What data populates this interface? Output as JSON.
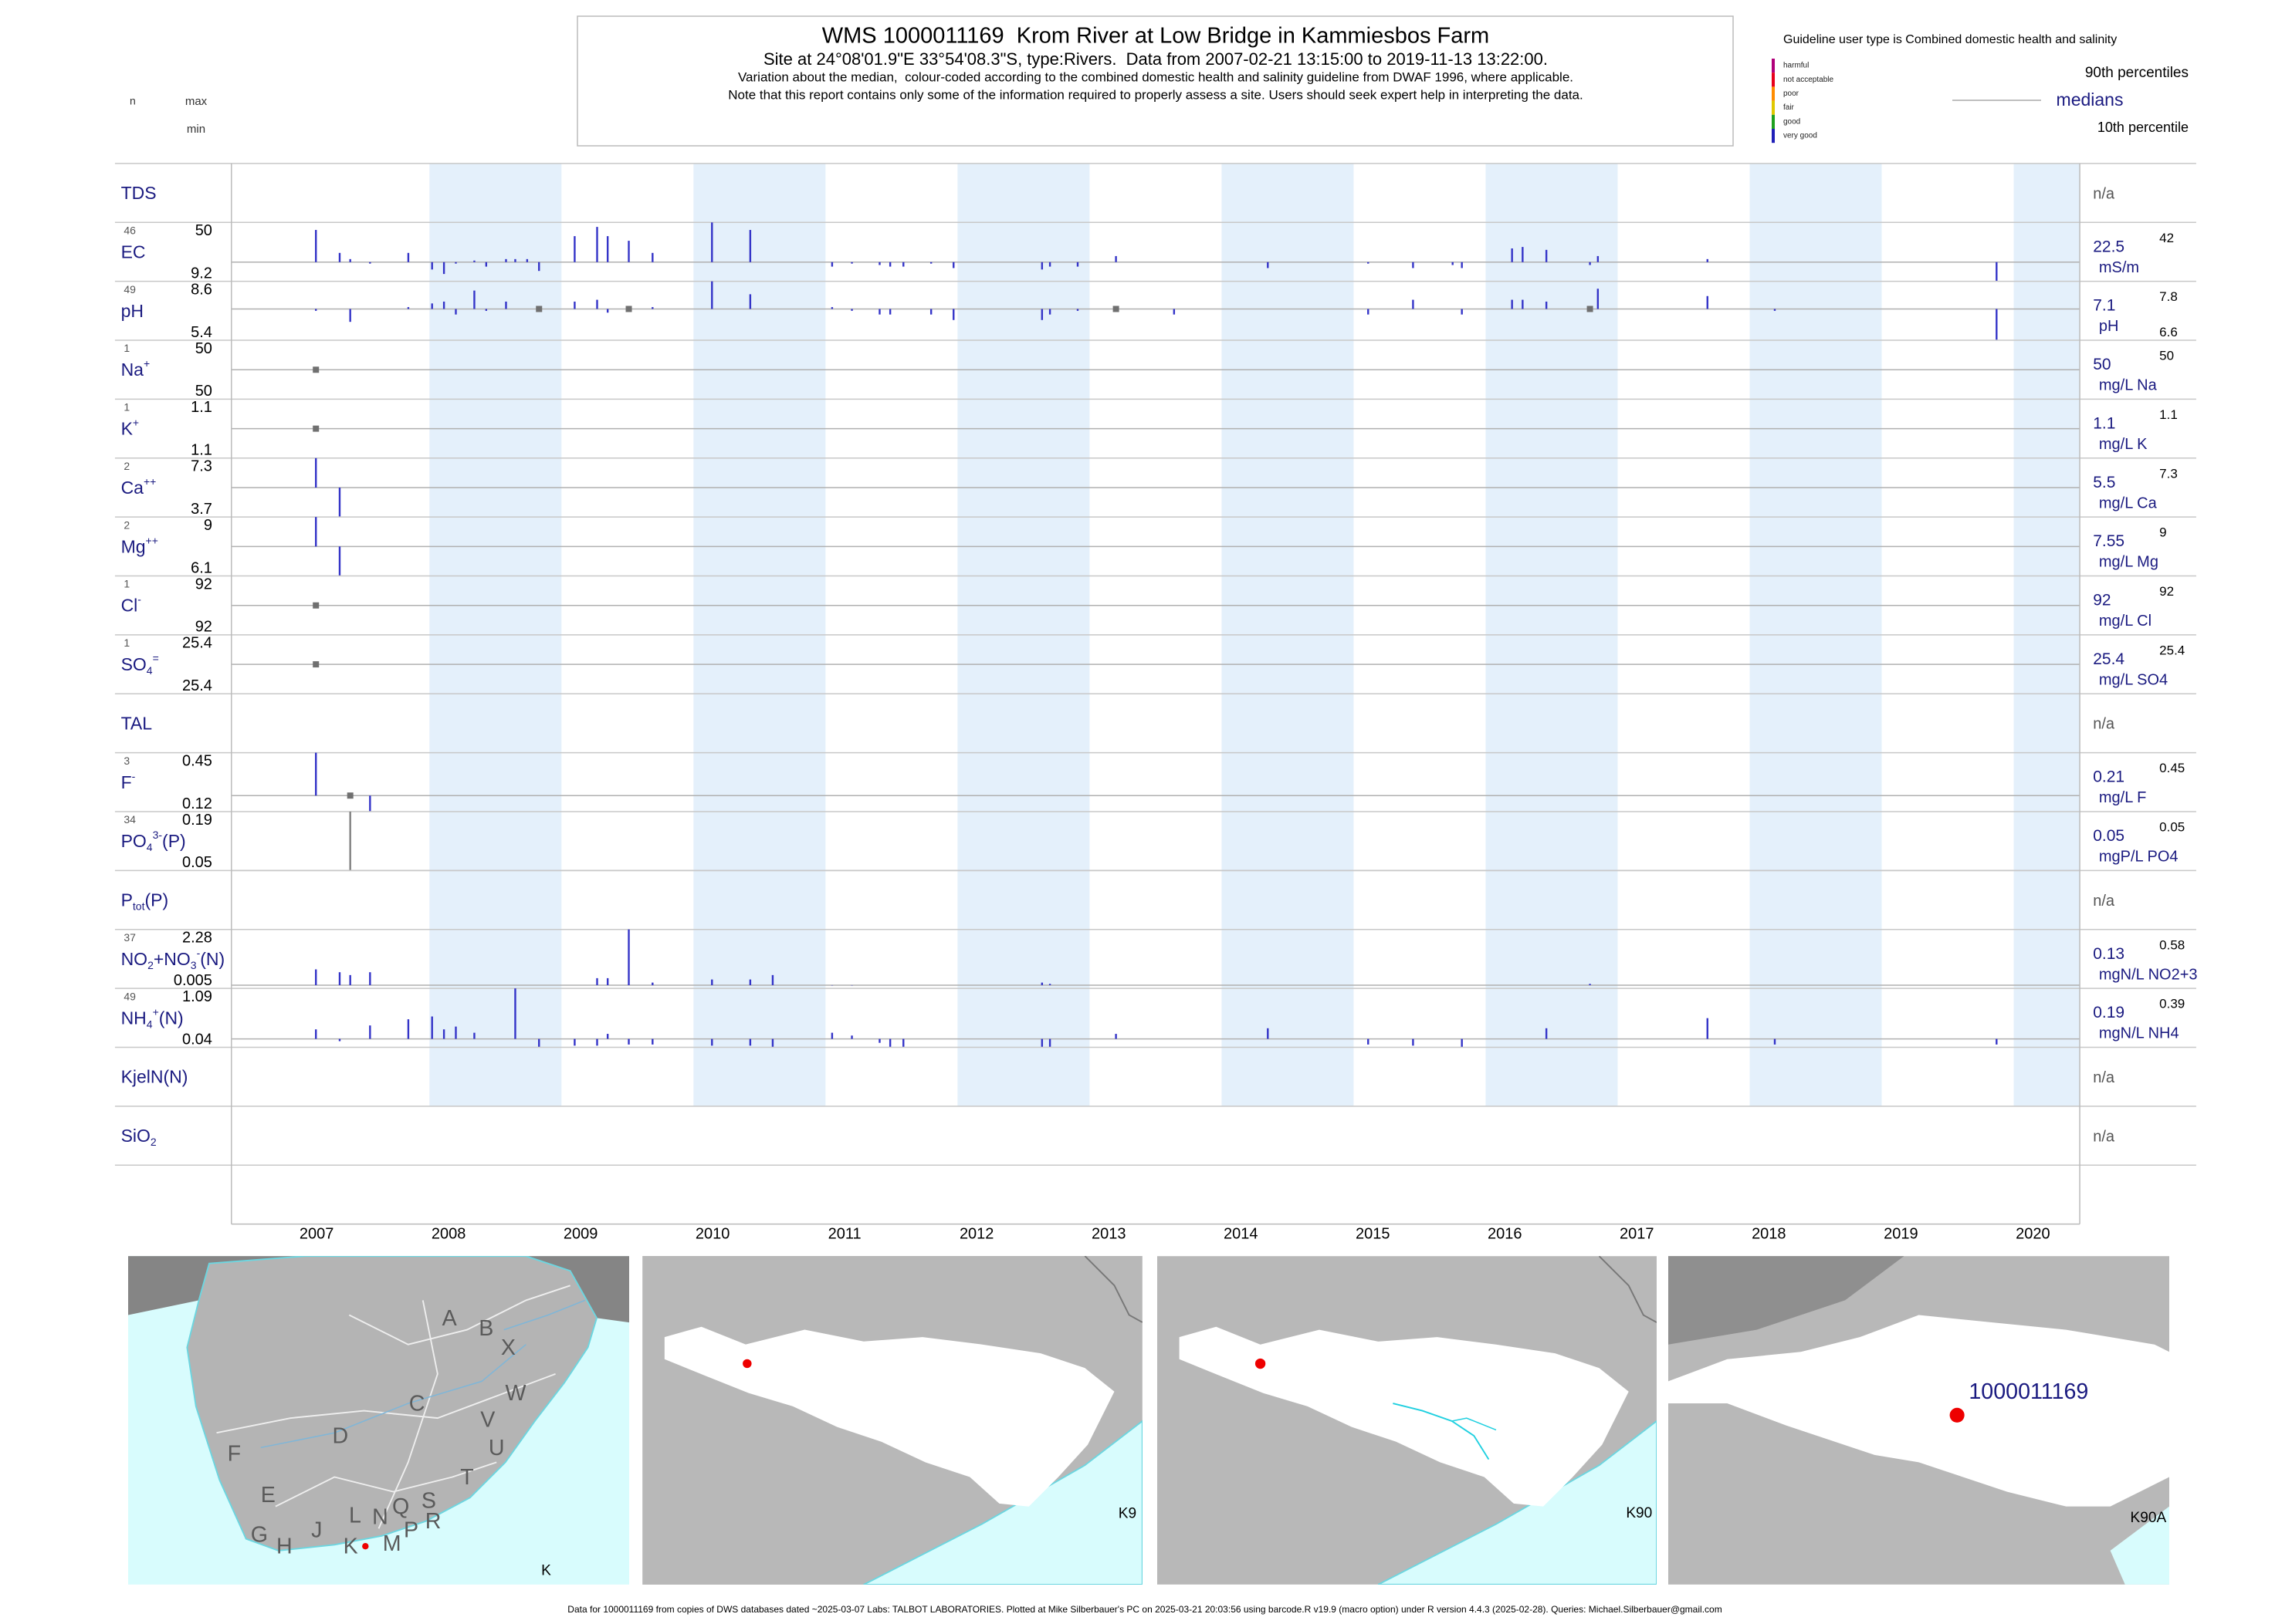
{
  "header": {
    "title": "WMS 1000011169  Krom River at Low Bridge in Kammiesbos Farm",
    "site_line": "Site at 24°08'01.9\"E 33°54'08.3\"S, type:Rivers.  Data from 2007-02-21 13:15:00 to 2019-11-13 13:22:00.",
    "note_1": "Variation about the median,  colour-coded according to the combined domestic health and salinity guideline from DWAF 1996, where applicable.",
    "note_2": "Note that this report contains only some of the information required to properly assess a site. Users should seek expert help in interpreting the data."
  },
  "column_labels": {
    "n": "n",
    "max": "max",
    "min": "min"
  },
  "legend": {
    "guideline": "Guideline user type is Combined domestic health and salinity",
    "classes": [
      {
        "label": "harmful",
        "color": "#b0007a"
      },
      {
        "label": "not acceptable",
        "color": "#e8001c"
      },
      {
        "label": "poor",
        "color": "#ff8c00"
      },
      {
        "label": "fair",
        "color": "#e0c800"
      },
      {
        "label": "good",
        "color": "#1ea01e"
      },
      {
        "label": "very good",
        "color": "#2020b8"
      }
    ],
    "upper": "90th percentiles",
    "middle": "medians",
    "lower": "10th percentile"
  },
  "chart_data": {
    "type": "strip",
    "xlim": [
      2006.5,
      2020.5
    ],
    "xticks": [
      2007,
      2008,
      2009,
      2010,
      2011,
      2012,
      2013,
      2014,
      2015,
      2016,
      2017,
      2018,
      2019,
      2020
    ],
    "alternate_shading": true,
    "rows": [
      {
        "name": [
          {
            "text": "TDS",
            "style": "base"
          }
        ],
        "status": "n/a"
      },
      {
        "name": [
          {
            "text": "EC",
            "style": "base"
          }
        ],
        "n": 46,
        "max": 50,
        "min": 9.2,
        "median": 22.5,
        "unit": "mS/m",
        "p90": 42,
        "color": "#3434c8",
        "x": [
          2007.14,
          2007.32,
          2007.4,
          2007.55,
          2007.84,
          2008.02,
          2008.11,
          2008.2,
          2008.34,
          2008.43,
          2008.58,
          2008.65,
          2008.74,
          2008.83,
          2009.1,
          2009.27,
          2009.35,
          2009.51,
          2009.69,
          2010.14,
          2010.43,
          2011.05,
          2011.2,
          2011.41,
          2011.49,
          2011.59,
          2011.8,
          2011.97,
          2012.64,
          2012.7,
          2012.91,
          2013.2,
          2014.35,
          2015.11,
          2015.45,
          2015.75,
          2015.82,
          2016.2,
          2016.28,
          2016.46,
          2016.79,
          2016.85,
          2017.68,
          2019.87
        ],
        "values": [
          44.8,
          28.9,
          24.6,
          21.5,
          28.9,
          17.4,
          14.3,
          21.5,
          23.6,
          19.4,
          24.6,
          24.6,
          24.6,
          16.4,
          40.5,
          46.9,
          40.5,
          37.3,
          28.9,
          50,
          44.8,
          19.4,
          21.5,
          20.5,
          19.4,
          19.4,
          21.5,
          18.4,
          17.4,
          19.4,
          19.4,
          26.7,
          18.4,
          21.5,
          18.4,
          20.5,
          18.4,
          32,
          33,
          31,
          20.5,
          26.7,
          24.6,
          9.2
        ]
      },
      {
        "name": [
          {
            "text": "pH",
            "style": "base"
          }
        ],
        "n": 49,
        "max": 8.6,
        "min": 5.4,
        "median": 7.1,
        "unit": "pH",
        "p90": 7.8,
        "p10": 6.6,
        "color": "#3434c8",
        "x": [
          2007.14,
          2007.4,
          2007.84,
          2008.02,
          2008.11,
          2008.2,
          2008.34,
          2008.43,
          2008.58,
          2008.83,
          2009.1,
          2009.27,
          2009.35,
          2009.51,
          2009.69,
          2010.14,
          2010.43,
          2011.05,
          2011.2,
          2011.41,
          2011.49,
          2011.8,
          2011.97,
          2012.64,
          2012.7,
          2012.91,
          2013.2,
          2013.64,
          2015.11,
          2015.45,
          2015.82,
          2016.2,
          2016.28,
          2016.46,
          2016.79,
          2016.85,
          2017.68,
          2018.19,
          2019.87
        ],
        "values": [
          7.0,
          6.4,
          7.2,
          7.4,
          7.5,
          6.8,
          8.1,
          7.0,
          7.5,
          7.1,
          7.5,
          7.6,
          6.9,
          7.1,
          7.2,
          8.6,
          7.9,
          7.2,
          7.0,
          6.8,
          6.8,
          6.8,
          6.5,
          6.5,
          6.8,
          7.0,
          7.1,
          6.8,
          6.8,
          7.6,
          6.8,
          7.6,
          7.6,
          7.5,
          7.1,
          8.2,
          7.8,
          7.0,
          5.4
        ]
      },
      {
        "name": [
          {
            "text": "Na",
            "style": "base"
          },
          {
            "text": "+",
            "style": "sup"
          }
        ],
        "n": 1,
        "max": 50,
        "min": 50,
        "median": 50,
        "unit": "mg/L Na",
        "p90": 50,
        "color": "#707070",
        "x": [
          2007.14
        ],
        "values": [
          50
        ]
      },
      {
        "name": [
          {
            "text": "K",
            "style": "base"
          },
          {
            "text": "+",
            "style": "sup"
          }
        ],
        "n": 1,
        "max": 1.1,
        "min": 1.1,
        "median": 1.1,
        "unit": "mg/L K",
        "p90": 1.1,
        "color": "#707070",
        "x": [
          2007.14
        ],
        "values": [
          1.1
        ]
      },
      {
        "name": [
          {
            "text": "Ca",
            "style": "base"
          },
          {
            "text": "++",
            "style": "sup"
          }
        ],
        "n": 2,
        "max": 7.3,
        "min": 3.7,
        "median": 5.5,
        "unit": "mg/L Ca",
        "p90": 7.3,
        "color": "#3434c8",
        "x": [
          2007.14,
          2007.32
        ],
        "values": [
          7.3,
          3.7
        ]
      },
      {
        "name": [
          {
            "text": "Mg",
            "style": "base"
          },
          {
            "text": "++",
            "style": "sup"
          }
        ],
        "n": 2,
        "max": 9,
        "min": 6.1,
        "median": 7.55,
        "unit": "mg/L Mg",
        "p90": 9,
        "color": "#3434c8",
        "x": [
          2007.14,
          2007.32
        ],
        "values": [
          9,
          6.1
        ]
      },
      {
        "name": [
          {
            "text": "Cl",
            "style": "base"
          },
          {
            "text": "-",
            "style": "sup"
          }
        ],
        "n": 1,
        "max": 92,
        "min": 92,
        "median": 92,
        "unit": "mg/L Cl",
        "p90": 92,
        "color": "#707070",
        "x": [
          2007.14
        ],
        "values": [
          92
        ]
      },
      {
        "name": [
          {
            "text": "SO",
            "style": "base"
          },
          {
            "text": "4",
            "style": "sub"
          },
          {
            "text": "=",
            "style": "sup"
          }
        ],
        "n": 1,
        "max": 25.4,
        "min": 25.4,
        "median": 25.4,
        "unit": "mg/L SO4",
        "p90": 25.4,
        "color": "#707070",
        "x": [
          2007.14
        ],
        "values": [
          25.4
        ]
      },
      {
        "name": [
          {
            "text": "TAL",
            "style": "base"
          }
        ],
        "status": "n/a"
      },
      {
        "name": [
          {
            "text": "F",
            "style": "base"
          },
          {
            "text": "-",
            "style": "sup"
          }
        ],
        "n": 3,
        "max": 0.45,
        "min": 0.12,
        "median": 0.21,
        "unit": "mg/L F",
        "p90": 0.45,
        "color": "#3434c8",
        "x": [
          2007.14,
          2007.4,
          2007.55
        ],
        "values": [
          0.45,
          0.21,
          0.12
        ]
      },
      {
        "name": [
          {
            "text": "PO",
            "style": "base"
          },
          {
            "text": "4",
            "style": "sub"
          },
          {
            "text": "3-",
            "style": "sup"
          },
          {
            "text": "(P)",
            "style": "base"
          }
        ],
        "n": 34,
        "max": 0.19,
        "min": 0.05,
        "median": 0.05,
        "unit": "mgP/L PO4",
        "p90": 0.05,
        "color": "#808080",
        "x": [
          2007.4
        ],
        "values": [
          0.19
        ]
      },
      {
        "name": [
          {
            "text": "P",
            "style": "base"
          },
          {
            "text": "tot",
            "style": "sub"
          },
          {
            "text": "(P)",
            "style": "base"
          }
        ],
        "status": "n/a"
      },
      {
        "name": [
          {
            "text": "NO",
            "style": "base"
          },
          {
            "text": "2",
            "style": "sub"
          },
          {
            "text": "+NO",
            "style": "base"
          },
          {
            "text": "3",
            "style": "sub"
          },
          {
            "text": "-",
            "style": "sup"
          },
          {
            "text": "(N)",
            "style": "base"
          }
        ],
        "n": 37,
        "max": 2.28,
        "min": 0.005,
        "median": 0.13,
        "unit": "mgN/L NO2+3",
        "p90": 0.58,
        "color": "#3434c8",
        "x": [
          2007.14,
          2007.32,
          2007.4,
          2007.55,
          2009.27,
          2009.35,
          2009.51,
          2009.69,
          2010.14,
          2010.43,
          2010.6,
          2011.05,
          2011.2,
          2012.64,
          2012.7,
          2016.79
        ],
        "values": [
          0.74,
          0.63,
          0.52,
          0.63,
          0.4,
          0.4,
          2.28,
          0.23,
          0.35,
          0.35,
          0.52,
          0.12,
          0.12,
          0.23,
          0.18,
          0.18
        ]
      },
      {
        "name": [
          {
            "text": "NH",
            "style": "base"
          },
          {
            "text": "4",
            "style": "sub"
          },
          {
            "text": "+",
            "style": "sup"
          },
          {
            "text": "(N)",
            "style": "base"
          }
        ],
        "n": 49,
        "max": 1.09,
        "min": 0.04,
        "median": 0.19,
        "unit": "mgN/L NH4",
        "p90": 0.39,
        "color": "#3434c8",
        "x": [
          2007.14,
          2007.32,
          2007.55,
          2007.84,
          2008.02,
          2008.11,
          2008.2,
          2008.34,
          2008.65,
          2008.83,
          2009.1,
          2009.27,
          2009.35,
          2009.51,
          2009.69,
          2010.14,
          2010.43,
          2010.6,
          2011.05,
          2011.2,
          2011.41,
          2011.49,
          2011.59,
          2012.64,
          2012.7,
          2013.2,
          2014.35,
          2015.11,
          2015.45,
          2015.82,
          2016.46,
          2017.68,
          2018.19,
          2019.87
        ],
        "values": [
          0.36,
          0.15,
          0.43,
          0.54,
          0.59,
          0.36,
          0.41,
          0.3,
          1.09,
          0.04,
          0.07,
          0.07,
          0.28,
          0.09,
          0.09,
          0.07,
          0.07,
          0.04,
          0.3,
          0.25,
          0.12,
          0.04,
          0.04,
          0.04,
          0.04,
          0.28,
          0.38,
          0.09,
          0.07,
          0.04,
          0.38,
          0.56,
          0.09,
          0.09
        ]
      },
      {
        "name": [
          {
            "text": "KjelN(N)",
            "style": "base"
          }
        ],
        "status": "n/a"
      },
      {
        "name": [
          {
            "text": "SiO",
            "style": "base"
          },
          {
            "text": "2",
            "style": "sub"
          }
        ],
        "status": "n/a"
      }
    ]
  },
  "maps": {
    "region_letters": [
      "A",
      "B",
      "X",
      "W",
      "C",
      "V",
      "U",
      "D",
      "F",
      "T",
      "E",
      "S",
      "Q",
      "N",
      "L",
      "R",
      "P",
      "M",
      "G",
      "H",
      "J",
      "K"
    ],
    "panel_labels": [
      "K",
      "K9",
      "K90",
      "K90A"
    ],
    "site_label": "1000011169"
  },
  "footer": "Data for 1000011169 from copies of DWS databases dated ~2025-03-07 Labs: TALBOT LABORATORIES. Plotted at Mike Silberbauer's PC on 2025-03-21 20:03:56 using barcode.R v19.9 (macro option) under R version 4.4.3 (2025-02-28). Queries: Michael.Silberbauer@gmail.com"
}
